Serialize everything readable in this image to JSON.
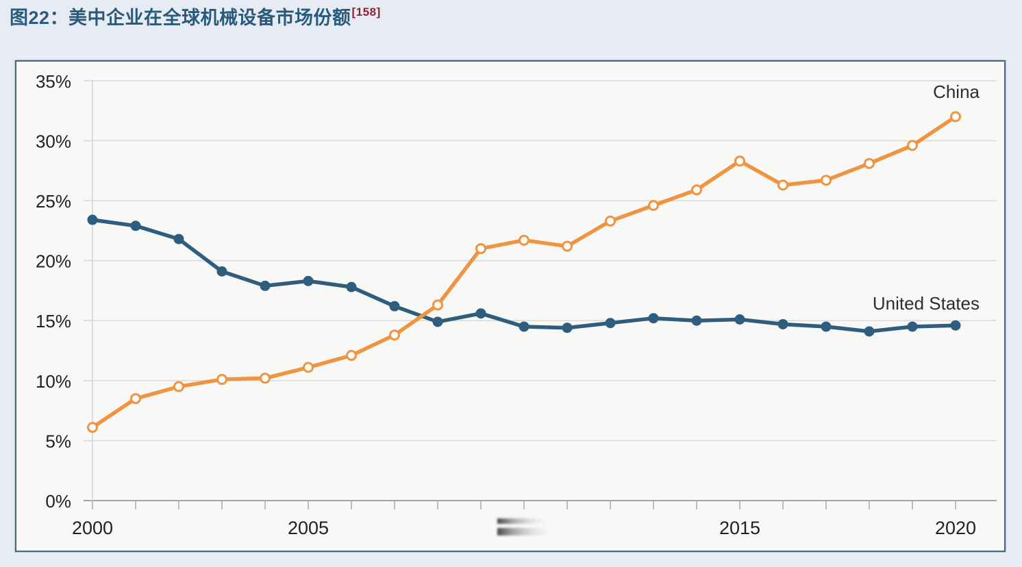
{
  "header": {
    "title": "图22：美中企业在全球机械设备市场份额",
    "citation": "[158]",
    "title_color": "#2a5a7b",
    "citation_color": "#8b2132"
  },
  "colors": {
    "page_background": "#e7ecf4",
    "plot_background": "#f8f8f6",
    "panel_border": "#46697e",
    "gridline": "#dadad8",
    "axis_line": "#a3a3a3",
    "tick_label": "#222222",
    "series_label": "#2d2d2d",
    "china_orange": "#ef9440",
    "us_blue": "#2e5d7e"
  },
  "chart_data": {
    "type": "line",
    "title": "美中企业在全球机械设备市场份额",
    "xlabel": "",
    "ylabel": "",
    "grid": "horizontal",
    "legend": "series-end-labels",
    "xlim": [
      2000,
      2020
    ],
    "ylim": [
      0,
      36.6
    ],
    "x": [
      2000,
      2001,
      2002,
      2003,
      2004,
      2005,
      2006,
      2007,
      2008,
      2009,
      2010,
      2011,
      2012,
      2013,
      2014,
      2015,
      2016,
      2017,
      2018,
      2019,
      2020
    ],
    "series": [
      {
        "name": "United States",
        "color": "#2e5d7e",
        "marker": "filled-circle",
        "values": [
          23.4,
          22.9,
          21.8,
          19.1,
          17.9,
          18.3,
          17.8,
          16.2,
          14.9,
          15.6,
          14.5,
          14.4,
          14.8,
          15.2,
          15.0,
          15.1,
          14.7,
          14.5,
          14.1,
          14.5,
          14.6
        ]
      },
      {
        "name": "China",
        "color": "#ef9440",
        "marker": "open-circle",
        "values": [
          6.1,
          8.5,
          9.5,
          10.1,
          10.2,
          11.1,
          12.1,
          13.8,
          16.3,
          21.0,
          21.7,
          21.2,
          23.3,
          24.6,
          25.9,
          28.3,
          26.3,
          26.7,
          28.1,
          29.6,
          32.0
        ]
      }
    ],
    "y_ticks": [
      {
        "value": 35,
        "label": "35%"
      },
      {
        "value": 30,
        "label": "30%"
      },
      {
        "value": 25,
        "label": "25%"
      },
      {
        "value": 20,
        "label": "20%"
      },
      {
        "value": 15,
        "label": "15%"
      },
      {
        "value": 10,
        "label": "10%"
      },
      {
        "value": 5,
        "label": "5%"
      },
      {
        "value": 0,
        "label": "0%"
      }
    ],
    "x_ticks": [
      {
        "value": 2000,
        "label": "2000"
      },
      {
        "value": 2005,
        "label": "2005"
      },
      {
        "value": 2010,
        "label": "2010",
        "blurred": true
      },
      {
        "value": 2015,
        "label": "2015"
      },
      {
        "value": 2020,
        "label": "2020"
      }
    ],
    "minor_x_ticks_every_year": true
  }
}
